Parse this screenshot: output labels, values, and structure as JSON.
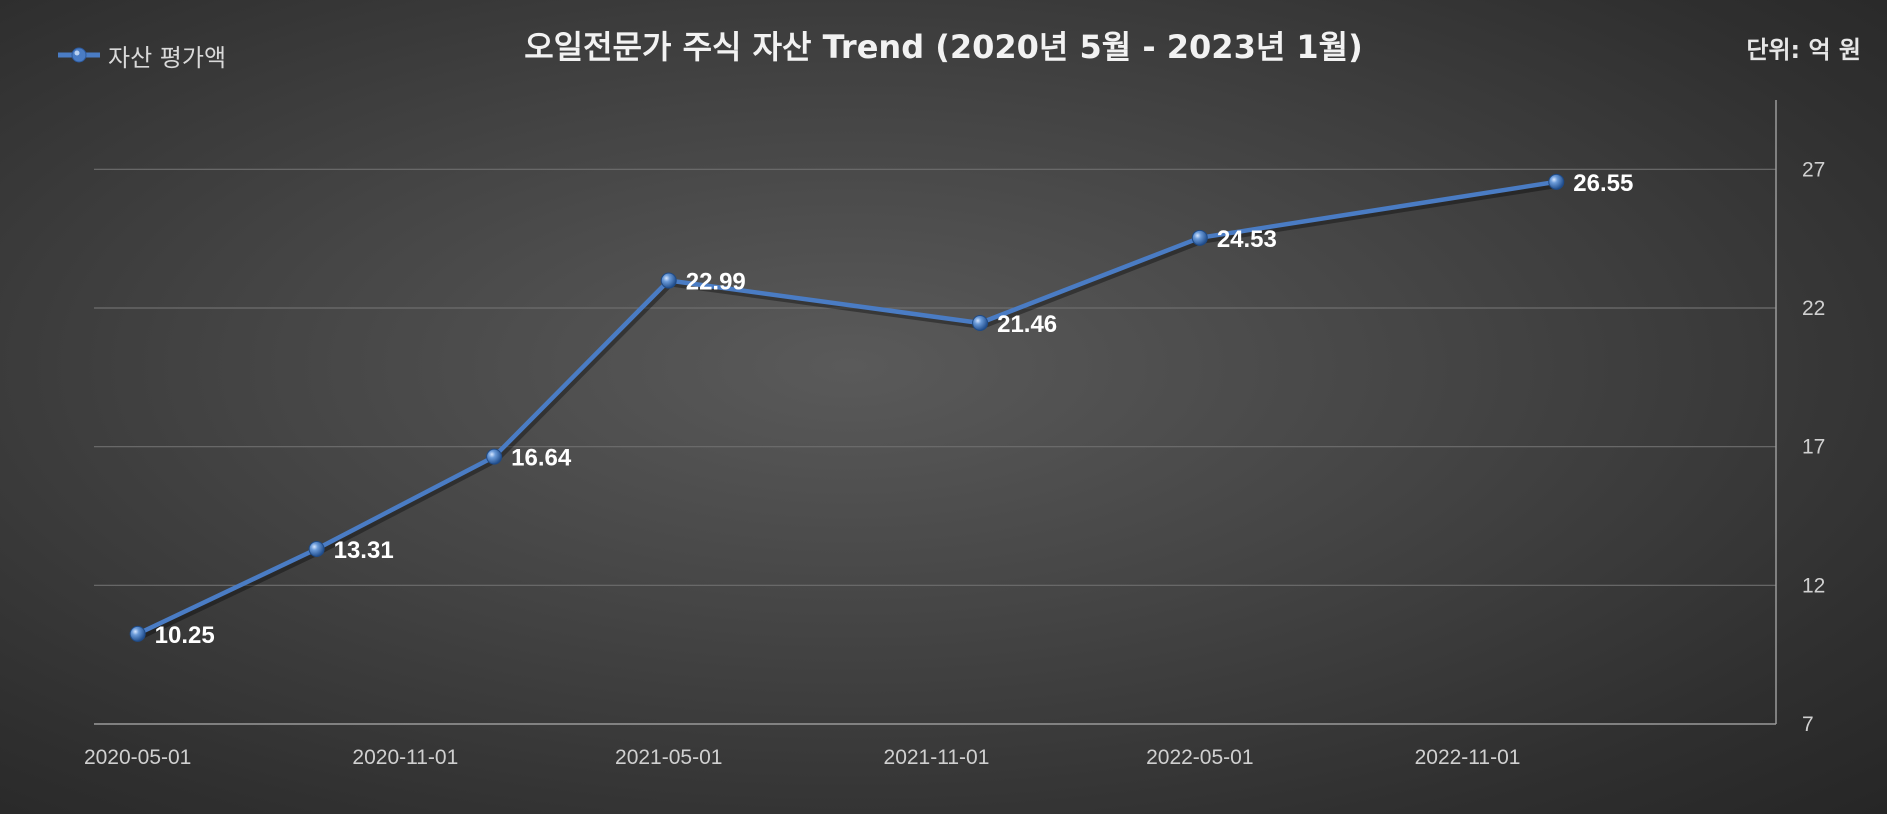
{
  "chart_data": {
    "type": "line",
    "title": "오일전문가 주식 자산 Trend (2020년 5월 - 2023년 1월)",
    "unit": "단위: 억 원",
    "legend_position": "top-left",
    "grid": true,
    "series": [
      {
        "name": "자산 평가액",
        "color": "#4a7cc4",
        "x": [
          "2020-05-01",
          "2020-09-01",
          "2021-01-01",
          "2021-05-01",
          "2021-12-01",
          "2022-05-01",
          "2023-01-01"
        ],
        "values": [
          10.25,
          13.31,
          16.64,
          22.99,
          21.46,
          24.53,
          26.55
        ]
      }
    ],
    "x_ticks": [
      "2020-05-01",
      "2020-11-01",
      "2021-05-01",
      "2021-11-01",
      "2022-05-01",
      "2022-11-01"
    ],
    "y_ticks": [
      7,
      12,
      17,
      22,
      27
    ],
    "ylim": [
      7,
      29.5
    ],
    "xlim": [
      "2020-04-01",
      "2023-06-01"
    ],
    "y_axis_side": "right"
  }
}
